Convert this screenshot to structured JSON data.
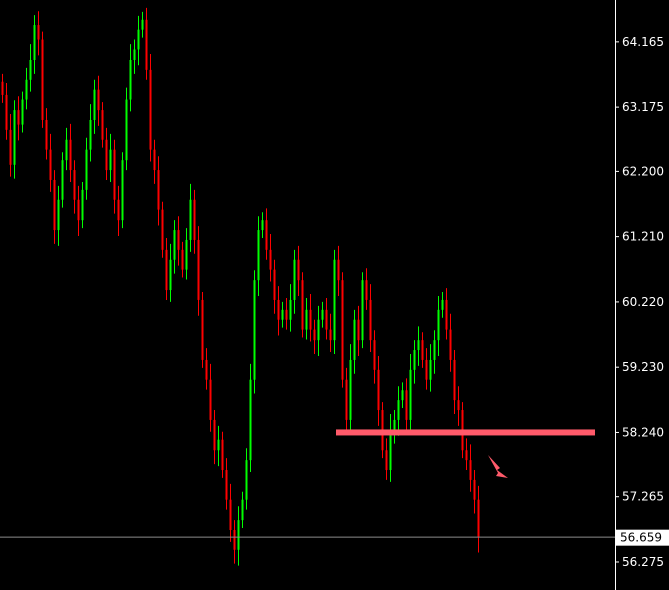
{
  "chart_data": {
    "type": "candlestick",
    "title": "",
    "xlabel": "",
    "ylabel": "",
    "ylim": [
      55.85,
      64.8
    ],
    "grid": false,
    "y_ticks": [
      "64.165",
      "63.175",
      "62.200",
      "61.210",
      "60.220",
      "59.230",
      "58.240",
      "57.265",
      "56.275"
    ],
    "close": [
      63.36,
      62.83,
      62.3,
      63.13,
      62.91,
      63.29,
      63.59,
      63.89,
      64.42,
      64.2,
      62.98,
      62.53,
      62.07,
      61.31,
      61.77,
      62.37,
      62.68,
      62.22,
      61.77,
      61.46,
      61.92,
      62.53,
      62.98,
      63.44,
      63.13,
      62.68,
      62.22,
      62.53,
      61.77,
      61.46,
      62.37,
      63.29,
      63.89,
      64.05,
      64.35,
      64.5,
      63.74,
      62.53,
      62.22,
      61.62,
      61.01,
      60.4,
      60.86,
      61.31,
      61.01,
      60.71,
      61.16,
      61.77,
      61.16,
      60.25,
      59.34,
      59.04,
      58.43,
      57.97,
      58.13,
      57.67,
      57.22,
      56.76,
      56.46,
      56.91,
      57.22,
      57.82,
      59.04,
      60.55,
      61.31,
      61.46,
      61.01,
      60.71,
      60.25,
      59.95,
      60.1,
      59.95,
      60.25,
      60.86,
      60.55,
      59.8,
      60.1,
      59.8,
      59.64,
      59.95,
      60.1,
      59.8,
      59.64,
      60.86,
      60.55,
      59.04,
      58.43,
      59.34,
      59.95,
      59.64,
      60.55,
      60.25,
      59.64,
      59.19,
      58.58,
      57.97,
      57.67,
      58.28,
      58.43,
      58.73,
      58.88,
      58.43,
      59.19,
      59.49,
      59.64,
      59.34,
      59.04,
      59.34,
      59.64,
      60.1,
      60.25,
      59.8,
      59.34,
      58.73,
      58.58,
      57.97,
      57.82,
      57.52,
      57.22,
      56.659
    ],
    "current_price": "56.659",
    "support_line": 58.24,
    "annotation": "arrow pointing down-right below support line",
    "colors": {
      "up": "#00ff00",
      "down": "#ff0000",
      "background": "#000000",
      "axis": "#ffffff",
      "support_line": "#ff5a6a",
      "price_line": "#8c8c8c"
    }
  }
}
